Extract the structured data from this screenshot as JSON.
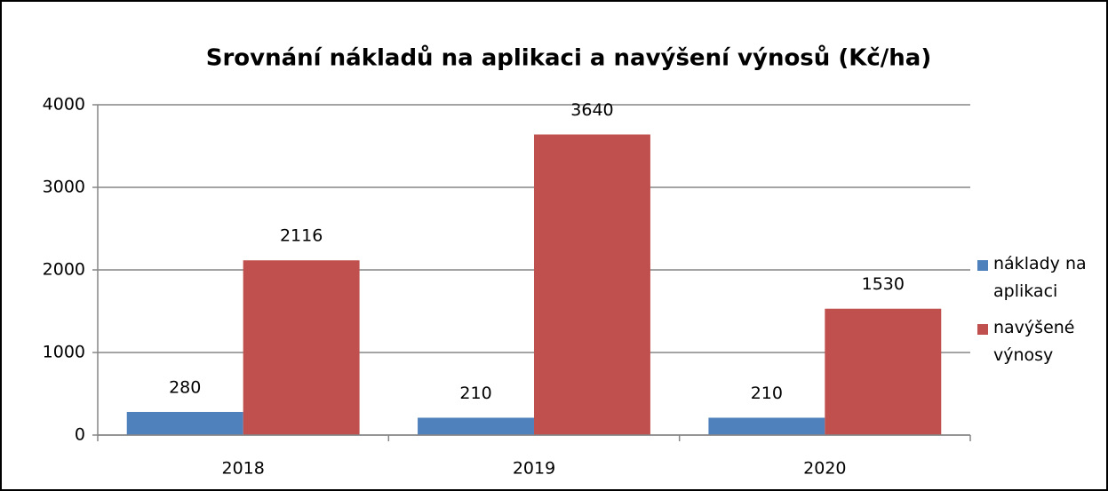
{
  "chart_data": {
    "type": "bar",
    "title": "Srovnání nákladů na aplikaci a navýšení výnosů (Kč/ha)",
    "categories": [
      "2018",
      "2019",
      "2020"
    ],
    "series": [
      {
        "name": "náklady na aplikaci",
        "color": "#4f81bd",
        "values": [
          280,
          210,
          210
        ]
      },
      {
        "name": "navýšené výnosy",
        "color": "#c0504d",
        "values": [
          2116,
          3640,
          1530
        ]
      }
    ],
    "ylim": [
      0,
      4000
    ],
    "yticks": [
      0,
      1000,
      2000,
      3000,
      4000
    ],
    "grid": true,
    "legend": "right"
  }
}
